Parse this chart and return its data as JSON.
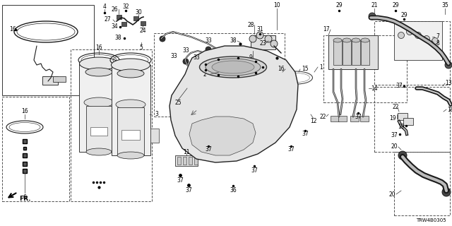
{
  "bg_color": "#ffffff",
  "diagram_code": "TRW4B0305",
  "line_color": "#1a1a1a",
  "box_color": "#333333"
}
